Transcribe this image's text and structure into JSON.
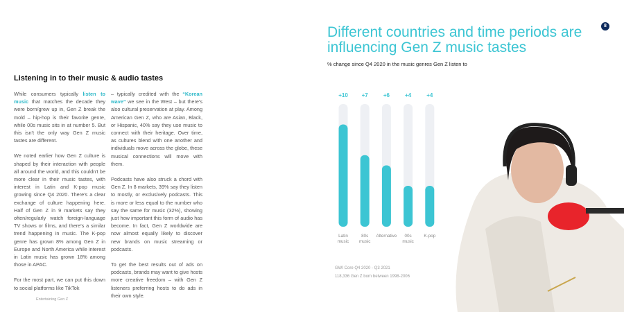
{
  "page": {
    "heading": "Listening in to their music & audio tastes",
    "columns": [
      [
        {
          "before": "While consumers typically ",
          "highlight": "listen to music",
          "after": " that matches the decade they were born/grew up in, Gen Z break the mold – hip-hop is their favorite genre, while 00s music sits in at number 5. But this isn't the only way Gen Z music tastes are different."
        },
        {
          "before": "We noted earlier how Gen Z culture is shaped by their interaction with people all around the world, and this couldn't be more clear in their music tastes, with interest in Latin and K-pop music growing since Q4 2020. There's a clear exchange of culture happening here. Half of Gen Z in 9 markets say they often/regularly watch foreign-language TV shows or films, and there's a similar trend happening in music. The K-pop genre has grown 8% among Gen Z in Europe and North America while interest in Latin music has grown 18% among those in APAC."
        },
        {
          "before": "For the most part, we can put this down to social platforms like TikTok"
        }
      ],
      [
        {
          "before": "– typically credited with the ",
          "highlight": "“Korean wave”",
          "after": " we see in the West – but there's also cultural preservation at play. Among American Gen Z, who are Asian, Black, or Hispanic, 40% say they use music to connect with their heritage. Over time, as cultures blend with one another and individuals move across the globe, these musical connections will move with them."
        },
        {
          "before": "Podcasts have also struck a chord with Gen Z. In 8 markets, 39% say they listen to mostly, or exclusively podcasts. This is more or less equal to the number who say the same for music (32%), showing just how important this form of audio has become. In fact, Gen Z worldwide are now almost equally likely to discover new brands on music streaming or podcasts."
        },
        {
          "before": "To get the best results out of ads on podcasts, brands may want to give hosts more creative freedom – with Gen Z listeners preferring hosts to do ads in their own style."
        }
      ]
    ],
    "footer": "Entertaining Gen Z",
    "page_number": "8",
    "notes": [
      "GWI Core Q4 2020 - Q3 2021",
      "118,336 Gen Z born between 1998-2006"
    ]
  },
  "chart_data": {
    "type": "bar",
    "title": "Different countries and time periods are influencing Gen Z music tastes",
    "subtitle": "% change since Q4 2020 in the music genres Gen Z listen to",
    "categories": [
      "Latin music",
      "80s music",
      "Alternative",
      "00s music",
      "K-pop"
    ],
    "values": [
      10,
      7,
      6,
      4,
      4
    ],
    "value_labels": [
      "+10",
      "+7",
      "+6",
      "+4",
      "+4"
    ],
    "color": "#3cc5d3",
    "ylim": [
      0,
      12
    ]
  }
}
